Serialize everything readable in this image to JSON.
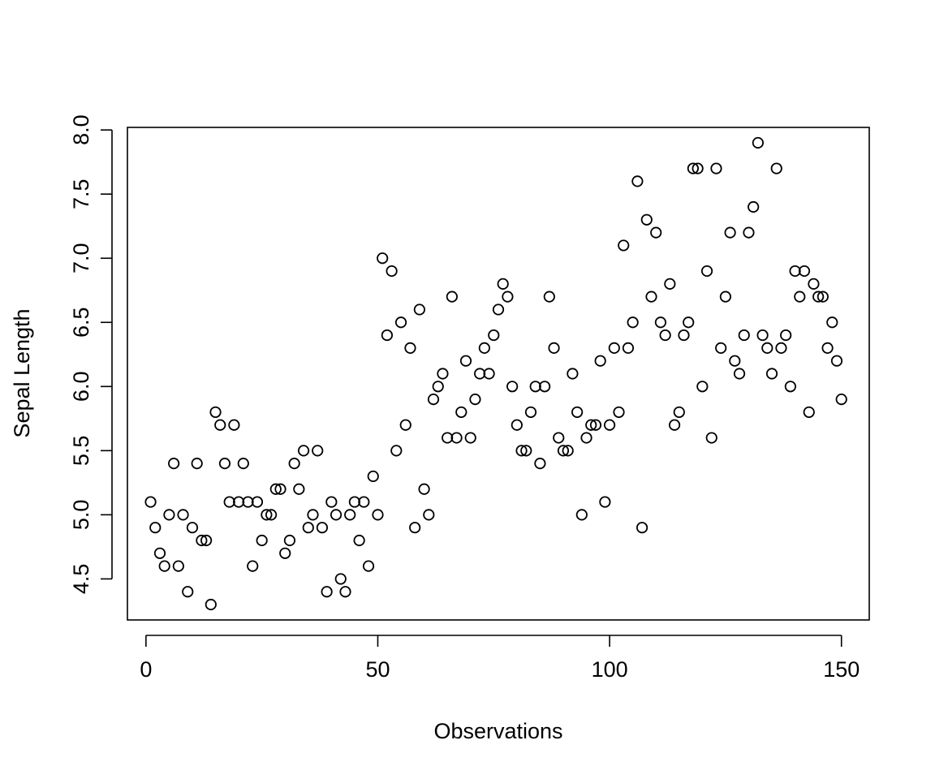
{
  "chart_data": {
    "type": "scatter",
    "title": "",
    "xlabel": "Observations",
    "ylabel": "Sepal Length",
    "xlim": [
      -4,
      156
    ],
    "ylim": [
      4.18,
      8.02
    ],
    "xticks": [
      0,
      50,
      100,
      150
    ],
    "xtick_labels": [
      "0",
      "50",
      "100",
      "150"
    ],
    "yticks": [
      4.5,
      5.0,
      5.5,
      6.0,
      6.5,
      7.0,
      7.5,
      8.0
    ],
    "ytick_labels": [
      "4.5",
      "5.0",
      "5.5",
      "6.0",
      "6.5",
      "7.0",
      "7.5",
      "8.0"
    ],
    "grid": false,
    "marker": "open-circle",
    "marker_color": "#000000",
    "x": [
      1,
      2,
      3,
      4,
      5,
      6,
      7,
      8,
      9,
      10,
      11,
      12,
      13,
      14,
      15,
      16,
      17,
      18,
      19,
      20,
      21,
      22,
      23,
      24,
      25,
      26,
      27,
      28,
      29,
      30,
      31,
      32,
      33,
      34,
      35,
      36,
      37,
      38,
      39,
      40,
      41,
      42,
      43,
      44,
      45,
      46,
      47,
      48,
      49,
      50,
      51,
      52,
      53,
      54,
      55,
      56,
      57,
      58,
      59,
      60,
      61,
      62,
      63,
      64,
      65,
      66,
      67,
      68,
      69,
      70,
      71,
      72,
      73,
      74,
      75,
      76,
      77,
      78,
      79,
      80,
      81,
      82,
      83,
      84,
      85,
      86,
      87,
      88,
      89,
      90,
      91,
      92,
      93,
      94,
      95,
      96,
      97,
      98,
      99,
      100,
      101,
      102,
      103,
      104,
      105,
      106,
      107,
      108,
      109,
      110,
      111,
      112,
      113,
      114,
      115,
      116,
      117,
      118,
      119,
      120,
      121,
      122,
      123,
      124,
      125,
      126,
      127,
      128,
      129,
      130,
      131,
      132,
      133,
      134,
      135,
      136,
      137,
      138,
      139,
      140,
      141,
      142,
      143,
      144,
      145,
      146,
      147,
      148,
      149,
      150
    ],
    "y": [
      5.1,
      4.9,
      4.7,
      4.6,
      5.0,
      5.4,
      4.6,
      5.0,
      4.4,
      4.9,
      5.4,
      4.8,
      4.8,
      4.3,
      5.8,
      5.7,
      5.4,
      5.1,
      5.7,
      5.1,
      5.4,
      5.1,
      4.6,
      5.1,
      4.8,
      5.0,
      5.0,
      5.2,
      5.2,
      4.7,
      4.8,
      5.4,
      5.2,
      5.5,
      4.9,
      5.0,
      5.5,
      4.9,
      4.4,
      5.1,
      5.0,
      4.5,
      4.4,
      5.0,
      5.1,
      4.8,
      5.1,
      4.6,
      5.3,
      5.0,
      7.0,
      6.4,
      6.9,
      5.5,
      6.5,
      5.7,
      6.3,
      4.9,
      6.6,
      5.2,
      5.0,
      5.9,
      6.0,
      6.1,
      5.6,
      6.7,
      5.6,
      5.8,
      6.2,
      5.6,
      5.9,
      6.1,
      6.3,
      6.1,
      6.4,
      6.6,
      6.8,
      6.7,
      6.0,
      5.7,
      5.5,
      5.5,
      5.8,
      6.0,
      5.4,
      6.0,
      6.7,
      6.3,
      5.6,
      5.5,
      5.5,
      6.1,
      5.8,
      5.0,
      5.6,
      5.7,
      5.7,
      6.2,
      5.1,
      5.7,
      6.3,
      5.8,
      7.1,
      6.3,
      6.5,
      7.6,
      4.9,
      7.3,
      6.7,
      7.2,
      6.5,
      6.4,
      6.8,
      5.7,
      5.8,
      6.4,
      6.5,
      7.7,
      7.7,
      6.0,
      6.9,
      5.6,
      7.7,
      6.3,
      6.7,
      7.2,
      6.2,
      6.1,
      6.4,
      7.2,
      7.4,
      7.9,
      6.4,
      6.3,
      6.1,
      7.7,
      6.3,
      6.4,
      6.0,
      6.9,
      6.7,
      6.9,
      5.8,
      6.8,
      6.7,
      6.7,
      6.3,
      6.5,
      6.2,
      5.9
    ]
  }
}
